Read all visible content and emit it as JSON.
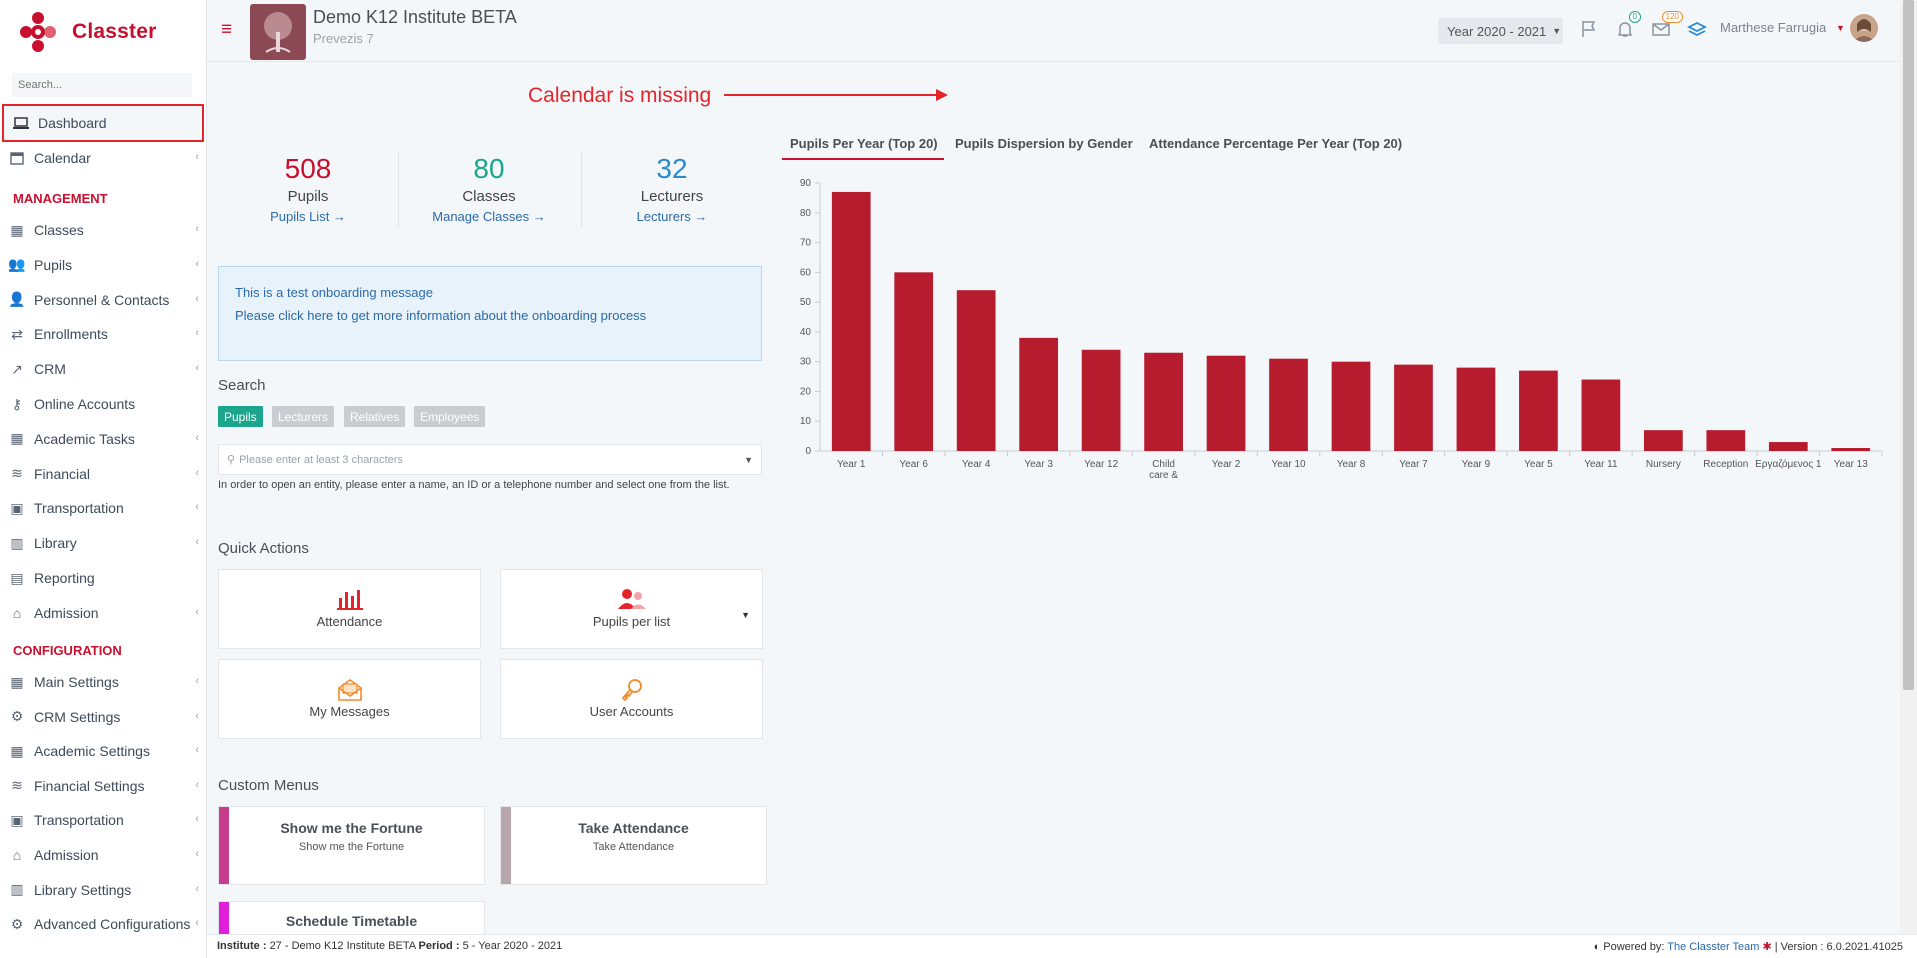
{
  "brand": {
    "name": "Classter",
    "color": "#c8102e"
  },
  "sidebar": {
    "search_placeholder": "Search...",
    "dashboard": "Dashboard",
    "calendar": "Calendar",
    "management_title": "MANAGEMENT",
    "management": [
      {
        "label": "Classes",
        "icon": "classes-icon",
        "chevron": true
      },
      {
        "label": "Pupils",
        "icon": "pupils-icon",
        "chevron": true
      },
      {
        "label": "Personnel & Contacts",
        "icon": "personnel-icon",
        "chevron": true
      },
      {
        "label": "Enrollments",
        "icon": "enrollments-icon",
        "chevron": true
      },
      {
        "label": "CRM",
        "icon": "crm-icon",
        "chevron": true
      },
      {
        "label": "Online Accounts",
        "icon": "key-icon",
        "chevron": false
      },
      {
        "label": "Academic Tasks",
        "icon": "grid-icon",
        "chevron": true
      },
      {
        "label": "Financial",
        "icon": "coins-icon",
        "chevron": true
      },
      {
        "label": "Transportation",
        "icon": "bus-icon",
        "chevron": true
      },
      {
        "label": "Library",
        "icon": "books-icon",
        "chevron": true
      },
      {
        "label": "Reporting",
        "icon": "report-icon",
        "chevron": false
      },
      {
        "label": "Admission",
        "icon": "building-icon",
        "chevron": true
      }
    ],
    "configuration_title": "CONFIGURATION",
    "configuration": [
      {
        "label": "Main Settings",
        "icon": "settings-icon",
        "chevron": true
      },
      {
        "label": "CRM Settings",
        "icon": "crm-settings-icon",
        "chevron": true
      },
      {
        "label": "Academic Settings",
        "icon": "grid-icon",
        "chevron": true
      },
      {
        "label": "Financial Settings",
        "icon": "coins-icon",
        "chevron": true
      },
      {
        "label": "Transportation",
        "icon": "bus-icon",
        "chevron": true
      },
      {
        "label": "Admission",
        "icon": "building-icon",
        "chevron": true
      },
      {
        "label": "Library Settings",
        "icon": "books-icon",
        "chevron": true
      },
      {
        "label": "Advanced Configurations",
        "icon": "gear-icon",
        "chevron": true
      }
    ]
  },
  "header": {
    "institute_name": "Demo K12 Institute BETA",
    "institute_sub": "Prevezis 7",
    "year": "Year 2020 - 2021",
    "notif_count": "0",
    "msg_count": "120",
    "user": "Marthese Farrugia"
  },
  "annotation": {
    "text": "Calendar is missing"
  },
  "stats": [
    {
      "num": "508",
      "label": "Pupils",
      "link": "Pupils List",
      "color": "#c8102e"
    },
    {
      "num": "80",
      "label": "Classes",
      "link": "Manage Classes",
      "color": "#1aa58c"
    },
    {
      "num": "32",
      "label": "Lecturers",
      "link": "Lecturers",
      "color": "#2a8ad0"
    }
  ],
  "onboarding": {
    "line1": "This is a test onboarding message",
    "line2": "Please click here to get more information about the onboarding process"
  },
  "search": {
    "title": "Search",
    "pills": [
      "Pupils",
      "Lecturers",
      "Relatives",
      "Employees"
    ],
    "placeholder": "Please enter at least 3 characters",
    "help": "In order to open an entity, please enter a name, an ID or a telephone number and select one from the list."
  },
  "quick_actions": {
    "title": "Quick Actions",
    "items": [
      "Attendance",
      "Pupils per list",
      "My Messages",
      "User Accounts"
    ]
  },
  "custom_menus": {
    "title": "Custom Menus",
    "items": [
      {
        "title": "Show me the Fortune",
        "sub": "Show me the Fortune",
        "color": "#c83c8c"
      },
      {
        "title": "Take Attendance",
        "sub": "Take Attendance",
        "color": "#b7a6aa"
      },
      {
        "title": "Schedule Timetable",
        "sub": "",
        "color": "#e020d8"
      }
    ]
  },
  "tabs": [
    "Pupils Per Year (Top 20)",
    "Pupils Dispersion by Gender",
    "Attendance Percentage Per Year (Top 20)"
  ],
  "chart_data": {
    "type": "bar",
    "title": "",
    "categories": [
      "Year 1",
      "Year 6",
      "Year 4",
      "Year 3",
      "Year 12",
      "Child care &",
      "Year 2",
      "Year 10",
      "Year 8",
      "Year 7",
      "Year 9",
      "Year 5",
      "Year 11",
      "Nursery",
      "Reception",
      "Εργαζόμενος 1",
      "Year 13"
    ],
    "values": [
      87,
      60,
      54,
      38,
      34,
      33,
      32,
      31,
      30,
      29,
      28,
      27,
      24,
      7,
      7,
      3,
      1
    ],
    "ylim": [
      0,
      90
    ],
    "yticks": [
      0,
      10,
      20,
      30,
      40,
      50,
      60,
      70,
      80,
      90
    ],
    "bar_color": "#b71c2e",
    "grid": false
  },
  "footer": {
    "left_inst_label": "Institute :",
    "left_inst_value": "27 - Demo K12 Institute BETA",
    "left_period_label": "Period :",
    "left_period_value": "5 - Year 2020 - 2021",
    "powered": "Powered by:",
    "team": "The Classter Team",
    "version": "| Version : 6.0.2021.41025"
  }
}
